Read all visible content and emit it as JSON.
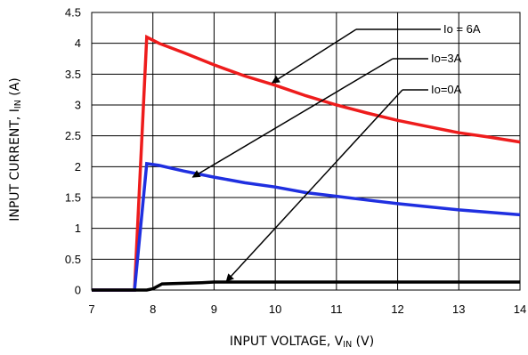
{
  "chart_data": {
    "type": "line",
    "xlabel_main": "INPUT VOLTAGE, V",
    "xlabel_sub": "IN",
    "xlabel_unit": " (V)",
    "ylabel_main": "INPUT CURRENT, I",
    "ylabel_sub": "IN",
    "ylabel_unit": " (A)",
    "xlim": [
      7,
      14
    ],
    "ylim": [
      0,
      4.5
    ],
    "xticks": [
      "7",
      "8",
      "9",
      "10",
      "11",
      "12",
      "13",
      "14"
    ],
    "yticks": [
      "0",
      "0.5",
      "1",
      "1.5",
      "2",
      "2.5",
      "3",
      "3.5",
      "4",
      "4.5"
    ],
    "grid": true,
    "series": [
      {
        "name": "Io = 6A",
        "color": "#ee1c1c",
        "x": [
          7.0,
          7.7,
          7.9,
          8.1,
          8.5,
          9.0,
          9.5,
          10.0,
          10.5,
          11.0,
          11.5,
          12.0,
          12.5,
          13.0,
          13.5,
          14.0
        ],
        "y": [
          0.0,
          0.0,
          4.1,
          4.0,
          3.85,
          3.65,
          3.47,
          3.32,
          3.15,
          3.0,
          2.87,
          2.75,
          2.65,
          2.55,
          2.48,
          2.4
        ]
      },
      {
        "name": "Io=3A",
        "color": "#1f2fe0",
        "x": [
          7.0,
          7.7,
          7.9,
          8.1,
          8.5,
          9.0,
          9.5,
          10.0,
          10.5,
          11.0,
          11.5,
          12.0,
          12.5,
          13.0,
          13.5,
          14.0
        ],
        "y": [
          0.0,
          0.0,
          2.05,
          2.02,
          1.93,
          1.83,
          1.74,
          1.67,
          1.58,
          1.52,
          1.46,
          1.4,
          1.35,
          1.3,
          1.26,
          1.22
        ]
      },
      {
        "name": "Io=0A",
        "color": "#000000",
        "x": [
          7.0,
          7.9,
          8.0,
          8.15,
          8.5,
          8.8,
          9.0,
          10.0,
          11.0,
          12.0,
          13.0,
          14.0
        ],
        "y": [
          0.0,
          0.0,
          0.02,
          0.1,
          0.11,
          0.12,
          0.13,
          0.13,
          0.13,
          0.13,
          0.13,
          0.13
        ]
      }
    ],
    "annotations": [
      {
        "text": "Io = 6A",
        "series": 0,
        "arrow_to": [
          9.95,
          3.36
        ]
      },
      {
        "text": "Io=3A",
        "series": 1,
        "arrow_to": [
          8.65,
          1.83
        ]
      },
      {
        "text": "Io=0A",
        "series": 2,
        "arrow_to": [
          9.2,
          0.14
        ]
      }
    ]
  }
}
